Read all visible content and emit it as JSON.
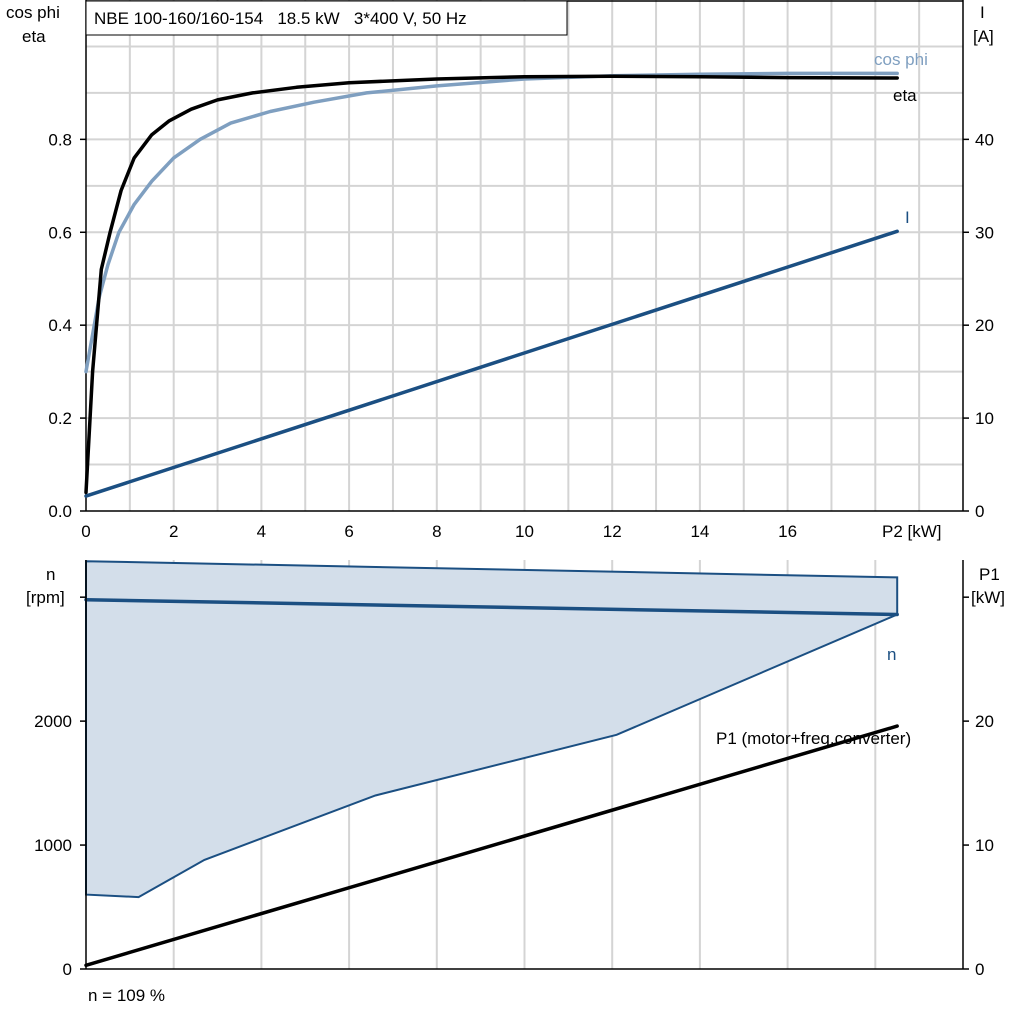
{
  "chart_data": [
    {
      "type": "line",
      "title": "NBE 100-160/160-154   18.5 kW   3*400 V, 50 Hz",
      "xlabel": "P2 [kW]",
      "ylabel_left": [
        "cos phi",
        "eta"
      ],
      "ylabel_right": [
        "I",
        "[A]"
      ],
      "xlim": [
        0,
        20
      ],
      "ylim_left": [
        0,
        1.1
      ],
      "ylim_right": [
        0,
        55
      ],
      "x_ticks": [
        0,
        2,
        4,
        6,
        8,
        10,
        12,
        14,
        16
      ],
      "y_ticks_left": [
        0.0,
        0.2,
        0.4,
        0.6,
        0.8
      ],
      "y_tick_labels_left": [
        "0.0",
        "0.2",
        "0.4",
        "0.6",
        "0.8"
      ],
      "y_ticks_right": [
        0,
        10,
        20,
        30,
        40
      ],
      "grid": true,
      "series": [
        {
          "name": "cos phi",
          "axis": "left",
          "color": "#7f9fc0",
          "x": [
            0,
            0.15,
            0.3,
            0.5,
            0.75,
            1.1,
            1.5,
            2.0,
            2.6,
            3.3,
            4.2,
            5.2,
            6.4,
            8.0,
            10.0,
            12.0,
            14.0,
            16.0,
            18.5
          ],
          "y": [
            0.3,
            0.38,
            0.46,
            0.53,
            0.6,
            0.66,
            0.71,
            0.76,
            0.8,
            0.835,
            0.86,
            0.88,
            0.9,
            0.915,
            0.93,
            0.937,
            0.94,
            0.942,
            0.942
          ]
        },
        {
          "name": "eta",
          "axis": "left",
          "color": "#000000",
          "x": [
            0,
            0.15,
            0.35,
            0.55,
            0.8,
            1.1,
            1.5,
            1.9,
            2.4,
            3.0,
            3.8,
            4.8,
            6.0,
            8.0,
            10.0,
            12.0,
            14.0,
            16.0,
            18.5
          ],
          "y": [
            0.04,
            0.3,
            0.52,
            0.6,
            0.69,
            0.76,
            0.81,
            0.84,
            0.865,
            0.885,
            0.9,
            0.912,
            0.922,
            0.93,
            0.935,
            0.936,
            0.935,
            0.933,
            0.932
          ]
        },
        {
          "name": "I",
          "axis": "right",
          "color": "#1b4f82",
          "x": [
            0,
            18.5
          ],
          "y": [
            1.6,
            30.1
          ]
        }
      ]
    },
    {
      "type": "area",
      "xlim": [
        0,
        20
      ],
      "ylim_left": [
        0,
        3300
      ],
      "ylim_right": [
        0,
        33
      ],
      "ylabel_left": [
        "n",
        "[rpm]"
      ],
      "ylabel_right": [
        "P1",
        "[kW]"
      ],
      "y_ticks_left": [
        0,
        1000,
        2000
      ],
      "y_ticks_right": [
        0,
        10,
        20
      ],
      "grid": true,
      "footnote": "n = 109 %",
      "operating_region": {
        "color": "#d3deea",
        "edge_color": "#1b4f82",
        "upper": {
          "x": [
            0,
            18.5
          ],
          "y": [
            3290,
            3160
          ]
        },
        "lower": {
          "x": [
            0,
            1.2,
            2.7,
            6.6,
            12.1,
            18.5
          ],
          "y": [
            600,
            580,
            880,
            1400,
            1890,
            2860
          ]
        }
      },
      "series": [
        {
          "name": "n",
          "axis": "left",
          "color": "#1b4f82",
          "x": [
            0,
            18.5
          ],
          "y": [
            2980,
            2860
          ]
        },
        {
          "name": "P1 (motor+freq.converter)",
          "axis": "right",
          "color": "#000000",
          "x": [
            0,
            18.5
          ],
          "y": [
            0.3,
            19.6
          ]
        }
      ]
    }
  ]
}
